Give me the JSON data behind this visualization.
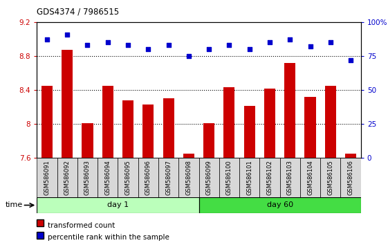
{
  "title": "GDS4374 / 7986515",
  "samples": [
    "GSM586091",
    "GSM586092",
    "GSM586093",
    "GSM586094",
    "GSM586095",
    "GSM586096",
    "GSM586097",
    "GSM586098",
    "GSM586099",
    "GSM586100",
    "GSM586101",
    "GSM586102",
    "GSM586103",
    "GSM586104",
    "GSM586105",
    "GSM586106"
  ],
  "bar_values": [
    8.45,
    8.87,
    8.01,
    8.45,
    8.28,
    8.23,
    8.3,
    7.65,
    8.01,
    8.43,
    8.21,
    8.42,
    8.72,
    8.32,
    8.45,
    7.65
  ],
  "dot_values": [
    87,
    91,
    83,
    85,
    83,
    80,
    83,
    75,
    80,
    83,
    80,
    85,
    87,
    82,
    85,
    72
  ],
  "bar_color": "#cc0000",
  "dot_color": "#0000cc",
  "ylim_left": [
    7.6,
    9.2
  ],
  "ylim_right": [
    0,
    100
  ],
  "left_tick_labels": [
    "7.6",
    "8",
    "8.4",
    "8.8",
    "9.2"
  ],
  "left_tick_values": [
    7.6,
    8.0,
    8.4,
    8.8,
    9.2
  ],
  "grid_values": [
    8.0,
    8.4,
    8.8
  ],
  "day1_label": "day 1",
  "day60_label": "day 60",
  "day1_color": "#bbffbb",
  "day60_color": "#44dd44",
  "time_label": "time",
  "legend_bar": "transformed count",
  "legend_dot": "percentile rank within the sample",
  "right_tick_labels": [
    "0",
    "25",
    "50",
    "75",
    "100%"
  ],
  "right_tick_values": [
    0,
    25,
    50,
    75,
    100
  ],
  "n_day1": 8,
  "n_day60": 8
}
